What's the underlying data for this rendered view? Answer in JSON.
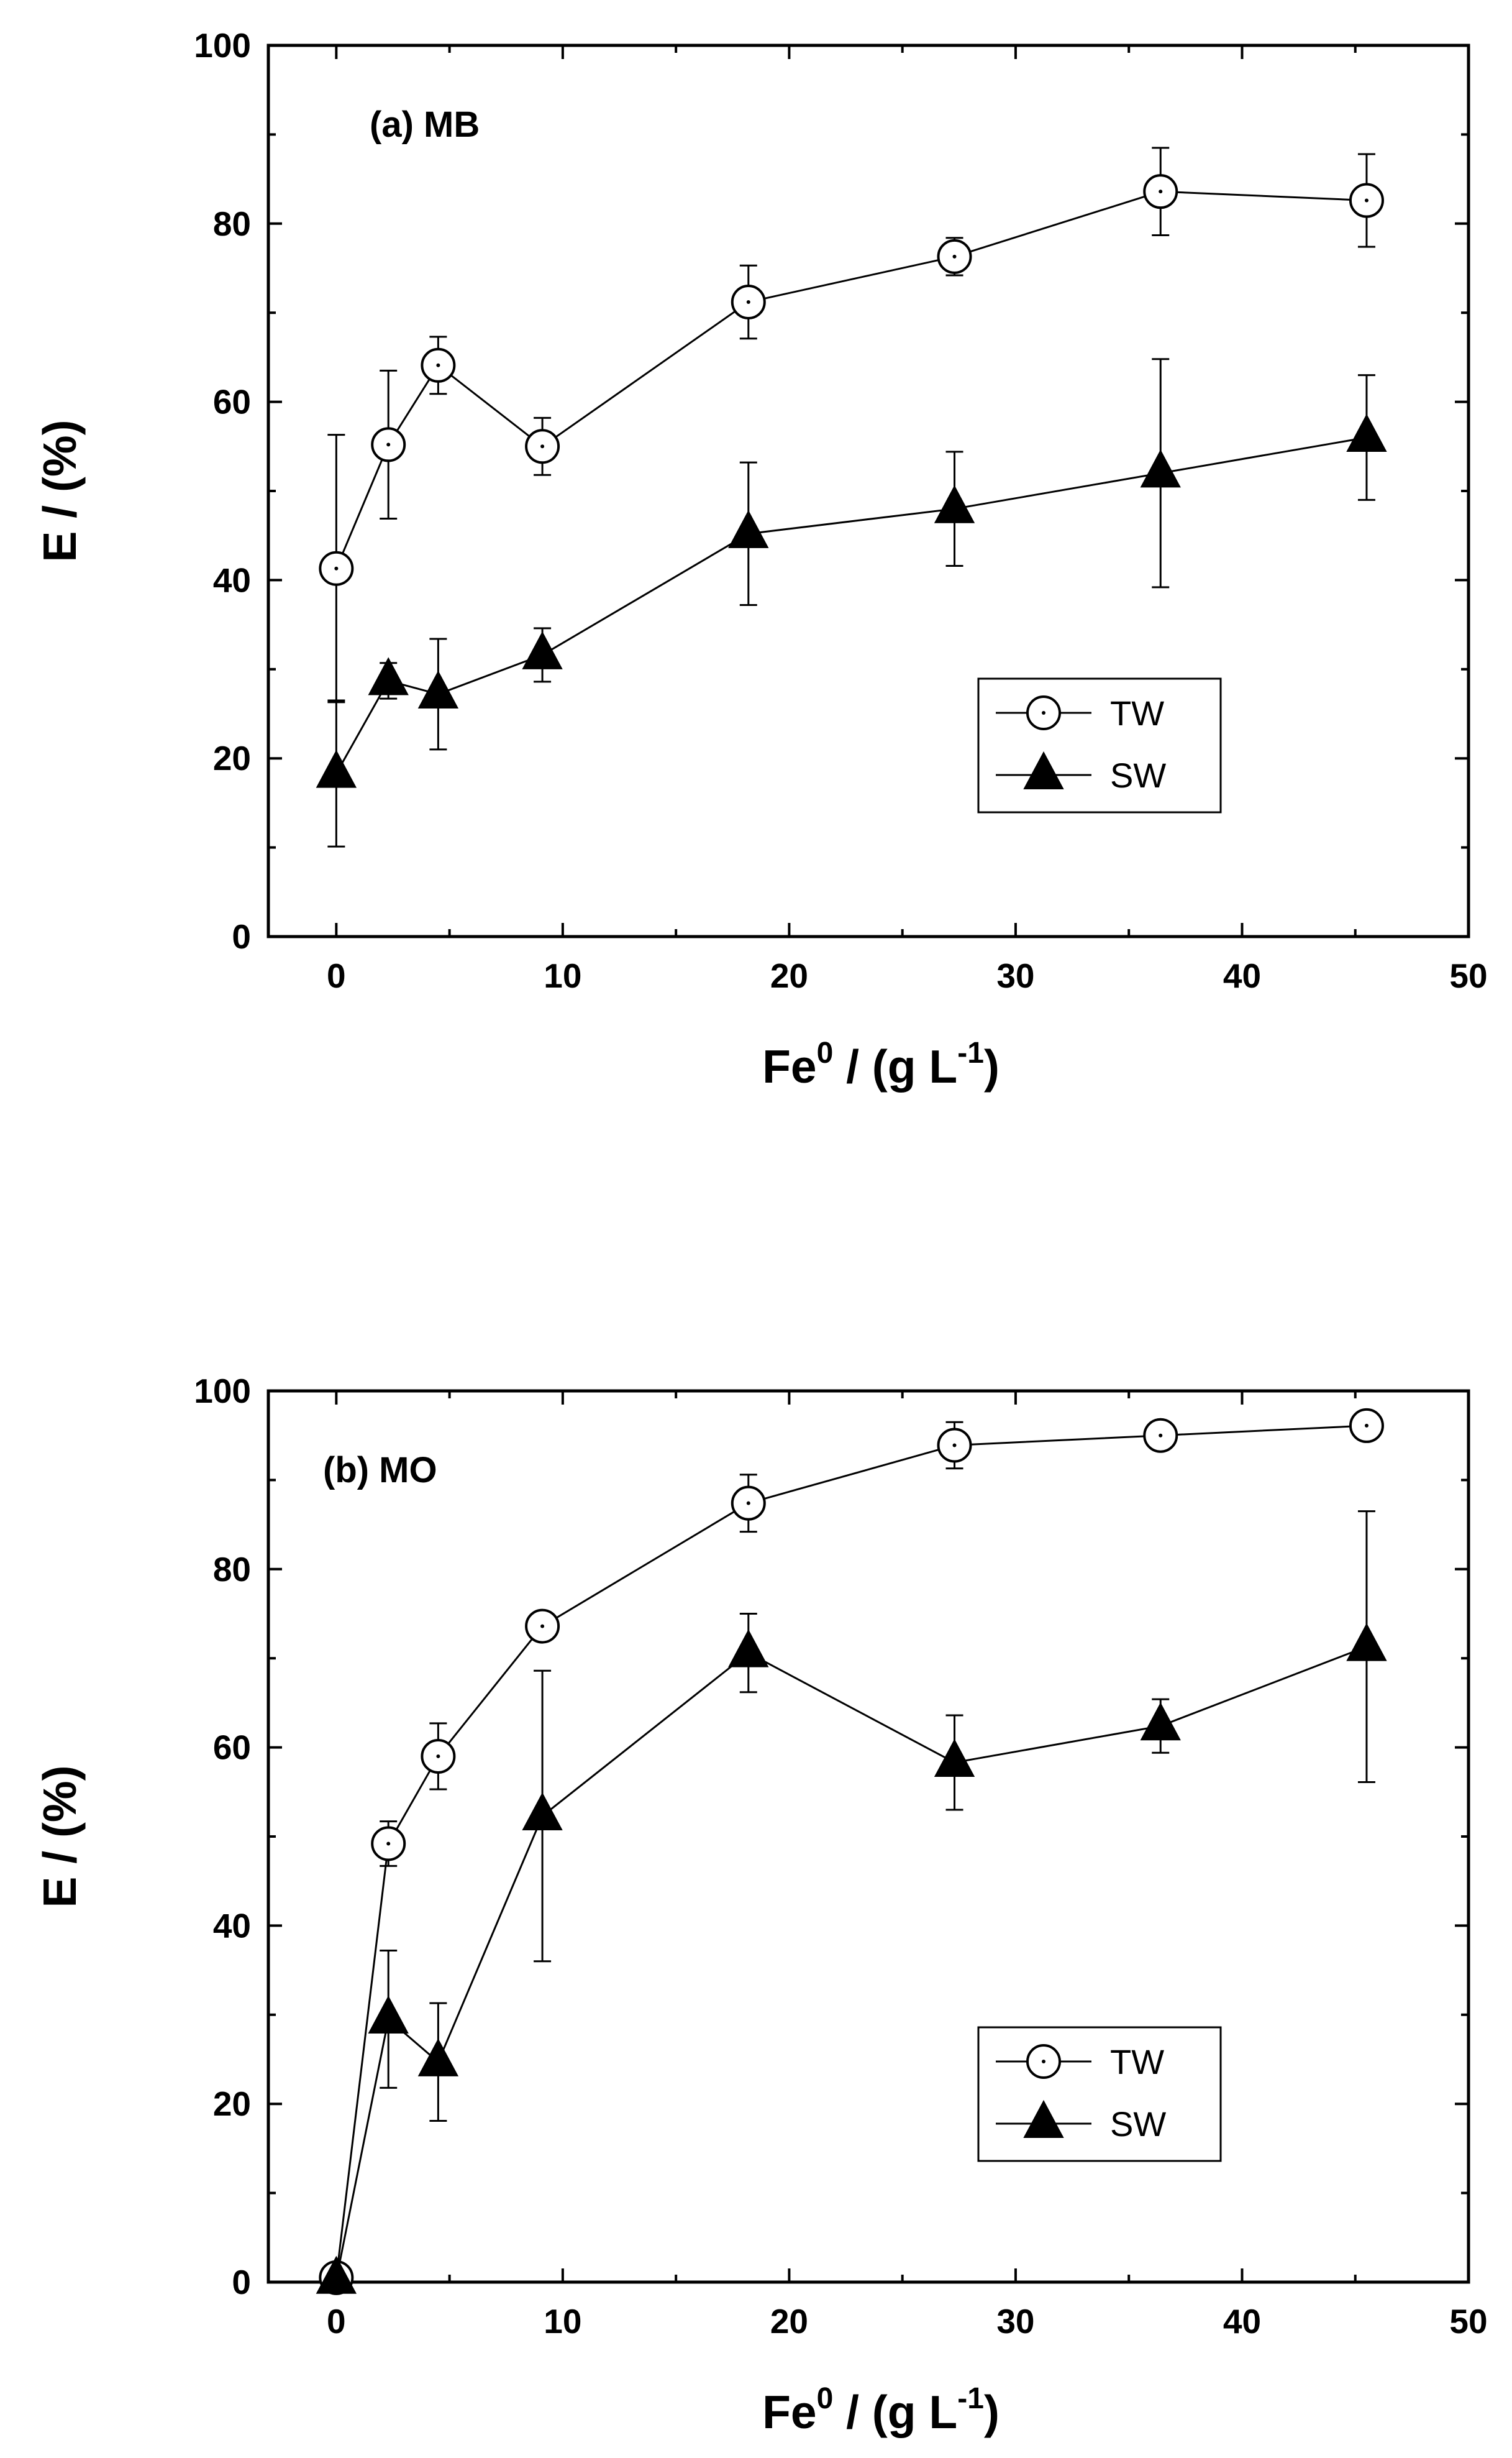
{
  "chart_data": [
    {
      "type": "line",
      "panel_label": "(a) MB",
      "xlabel": {
        "base": "Fe",
        "sup1": "0",
        "mid": " / (g L",
        "sup2": "-1",
        "end": ")"
      },
      "ylabel": "E / (%)",
      "xlim": [
        -3,
        50
      ],
      "ylim": [
        0,
        100
      ],
      "xticks": [
        0,
        10,
        20,
        30,
        40,
        50
      ],
      "yticks": [
        0,
        20,
        40,
        60,
        80,
        100
      ],
      "grid": false,
      "legend_position": "lower-right",
      "series": [
        {
          "name": "TW",
          "marker": "open-circle-dot",
          "x": [
            0,
            2.3,
            4.5,
            9.1,
            18.2,
            27.3,
            36.4,
            45.5
          ],
          "y": [
            41.3,
            55.2,
            64.1,
            55.0,
            71.2,
            76.3,
            83.6,
            82.6
          ],
          "err": [
            15,
            8.3,
            3.2,
            3.2,
            4.1,
            2.1,
            4.9,
            5.2
          ]
        },
        {
          "name": "SW",
          "marker": "filled-triangle",
          "x": [
            0,
            2.3,
            4.5,
            9.1,
            18.2,
            27.3,
            36.4,
            45.5
          ],
          "y": [
            18.3,
            28.7,
            27.2,
            31.6,
            45.2,
            48.0,
            52.0,
            56.0
          ],
          "err": [
            8.2,
            2.0,
            6.2,
            3.0,
            8.0,
            6.4,
            12.8,
            7.0
          ]
        }
      ]
    },
    {
      "type": "line",
      "panel_label": "(b) MO",
      "xlabel": {
        "base": "Fe",
        "sup1": "0",
        "mid": " / (g L",
        "sup2": "-1",
        "end": ")"
      },
      "ylabel": "E / (%)",
      "xlim": [
        -3,
        50
      ],
      "ylim": [
        0,
        100
      ],
      "xticks": [
        0,
        10,
        20,
        30,
        40,
        50
      ],
      "yticks": [
        0,
        20,
        40,
        60,
        80,
        100
      ],
      "grid": false,
      "legend_position": "lower-right",
      "series": [
        {
          "name": "TW",
          "marker": "open-circle-dot",
          "x": [
            0,
            2.3,
            4.5,
            9.1,
            18.2,
            27.3,
            36.4,
            45.5
          ],
          "y": [
            0.5,
            49.2,
            59.0,
            73.6,
            87.4,
            93.9,
            95.0,
            96.1
          ],
          "err": [
            0.3,
            2.5,
            3.7,
            1.6,
            3.2,
            2.6,
            0.5,
            1.0
          ]
        },
        {
          "name": "SW",
          "marker": "filled-triangle",
          "x": [
            0,
            2.3,
            4.5,
            9.1,
            18.2,
            27.3,
            36.4,
            45.5
          ],
          "y": [
            0.3,
            29.5,
            24.7,
            52.3,
            70.6,
            58.3,
            62.4,
            71.3
          ],
          "err": [
            0.2,
            7.7,
            6.6,
            16.3,
            4.4,
            5.3,
            3.0,
            15.2
          ]
        }
      ]
    }
  ]
}
